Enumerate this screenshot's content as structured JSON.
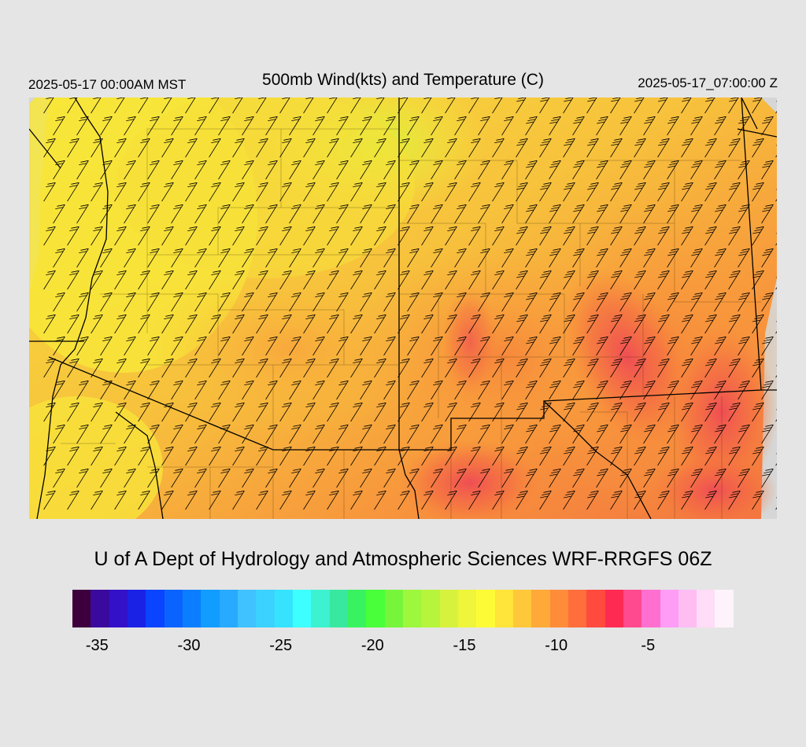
{
  "header": {
    "local_time": "2025-05-17 00:00AM MST",
    "title": "500mb Wind(kts) and Temperature (C)",
    "valid_time": "2025-05-17_07:00:00 Z"
  },
  "credit": "U of A Dept of Hydrology and Atmospheric Sciences WRF-RRGFS 06Z",
  "colorbar": {
    "colors": [
      "#3d003d",
      "#3a0a9e",
      "#3311c9",
      "#1a22e6",
      "#0a44ff",
      "#0b63ff",
      "#0a7eff",
      "#119cff",
      "#27aaff",
      "#3fc2ff",
      "#3bd2ff",
      "#36e3ff",
      "#3effff",
      "#3cf2d0",
      "#39e89f",
      "#39f25f",
      "#48ff3a",
      "#76f53a",
      "#9df73d",
      "#b6f53c",
      "#d6f23c",
      "#eef53a",
      "#fdfb35",
      "#ffe43a",
      "#ffc83a",
      "#ffa939",
      "#ff8c39",
      "#ff6e3b",
      "#ff4b3e",
      "#ff2a52",
      "#ff4a8f",
      "#ff6fd0",
      "#ff9cf5",
      "#ffbdf2",
      "#ffdcf7",
      "#fff3fb"
    ],
    "labels": [
      "-35",
      "-30",
      "-25",
      "-20",
      "-15",
      "-10",
      "-5"
    ],
    "label_values": [
      -35,
      -30,
      -25,
      -20,
      -15,
      -10,
      -5
    ],
    "min": -36,
    "max": 0
  },
  "map": {
    "background": "#d6d6d6",
    "wind_barb_color": "#000000",
    "temperature_palette_used": [
      "#ffff3a",
      "#f4e63a",
      "#f7c33c",
      "#f9a63c",
      "#f7803c",
      "#f26044",
      "#ee4d5a"
    ]
  }
}
